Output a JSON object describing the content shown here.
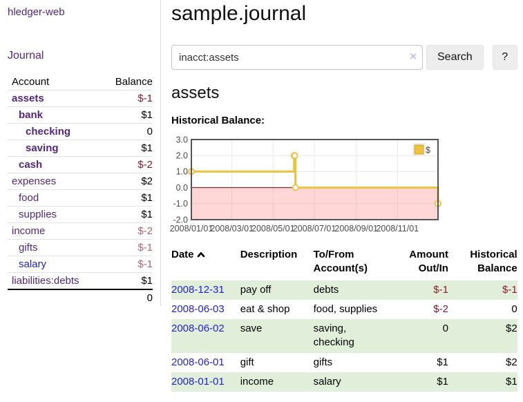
{
  "app": {
    "brand": "hledger-web"
  },
  "colors": {
    "link_purple": "#53277e",
    "link_blue": "#2222cc",
    "negative_strong": "#8b1a2b",
    "negative_soft": "#b2646e",
    "row_highlight_green": "#e1efda"
  },
  "sidebar": {
    "journal_link": "Journal",
    "accounts_header": {
      "account": "Account",
      "balance": "Balance"
    },
    "accounts": [
      {
        "name": "assets",
        "depth": 0,
        "in_acct": true,
        "balance": "$-1"
      },
      {
        "name": "bank",
        "depth": 1,
        "in_acct": true,
        "balance": "$1"
      },
      {
        "name": "checking",
        "depth": 2,
        "in_acct": true,
        "balance": "0"
      },
      {
        "name": "saving",
        "depth": 2,
        "in_acct": true,
        "balance": "$1"
      },
      {
        "name": "cash",
        "depth": 1,
        "in_acct": true,
        "balance": "$-2"
      },
      {
        "name": "expenses",
        "depth": 0,
        "in_acct": false,
        "balance": "$2"
      },
      {
        "name": "food",
        "depth": 1,
        "in_acct": false,
        "balance": "$1"
      },
      {
        "name": "supplies",
        "depth": 1,
        "in_acct": false,
        "balance": "$1"
      },
      {
        "name": "income",
        "depth": 0,
        "in_acct": false,
        "balance": "$-2"
      },
      {
        "name": "gifts",
        "depth": 1,
        "in_acct": false,
        "balance": "$-1"
      },
      {
        "name": "salary",
        "depth": 1,
        "in_acct": false,
        "blue": true,
        "balance": "$-1"
      },
      {
        "name": "liabilities:debts",
        "depth": 0,
        "in_acct": false,
        "balance": "$1"
      }
    ],
    "total": "0"
  },
  "header": {
    "title": "sample.journal"
  },
  "search": {
    "value": "inacct:assets",
    "clear_icon": "×",
    "button": "Search",
    "help_button": "?"
  },
  "main": {
    "account_title": "assets"
  },
  "chart_data": {
    "type": "line",
    "style": "step",
    "title": "Historical Balance:",
    "series": [
      {
        "name": "$",
        "color": "#edc240",
        "points": [
          [
            "2008-01-01",
            1
          ],
          [
            "2008-06-01",
            2
          ],
          [
            "2008-06-02",
            2
          ],
          [
            "2008-06-03",
            0
          ],
          [
            "2008-12-31",
            -1
          ]
        ]
      }
    ],
    "x_range": [
      "2008-01-01",
      "2008-12-31"
    ],
    "x_ticks": [
      "2008/01/01",
      "2008/03/01",
      "2008/05/01",
      "2008/07/01",
      "2008/09/01",
      "2008/11/01"
    ],
    "y_ticks": [
      "3.0",
      "2.0",
      "1.0",
      "0.0",
      "-1.0",
      "-2.0"
    ],
    "ylim": [
      -2,
      3
    ],
    "grid": true,
    "legend": {
      "position": "top-right"
    },
    "zero_line_color": "#8b0000",
    "negative_region_color": "rgba(255,130,130,0.32)",
    "plot_border_color": "#545454"
  },
  "register": {
    "headers": [
      "Date",
      "Description",
      "To/From Account(s)",
      "Amount Out/In",
      "Historical Balance"
    ],
    "sort": {
      "column": "Date",
      "direction": "asc"
    },
    "rows": [
      {
        "date": "2008-12-31",
        "description": "pay off",
        "accounts": "debts",
        "amount": "$-1",
        "balance": "$-1"
      },
      {
        "date": "2008-06-03",
        "description": "eat & shop",
        "accounts": "food, supplies",
        "amount": "$-2",
        "balance": "0"
      },
      {
        "date": "2008-06-02",
        "description": "save",
        "accounts": "saving, checking",
        "amount": "0",
        "balance": "$2"
      },
      {
        "date": "2008-06-01",
        "description": "gift",
        "accounts": "gifts",
        "amount": "$1",
        "balance": "$2"
      },
      {
        "date": "2008-01-01",
        "description": "income",
        "accounts": "salary",
        "amount": "$1",
        "balance": "$1"
      }
    ]
  }
}
